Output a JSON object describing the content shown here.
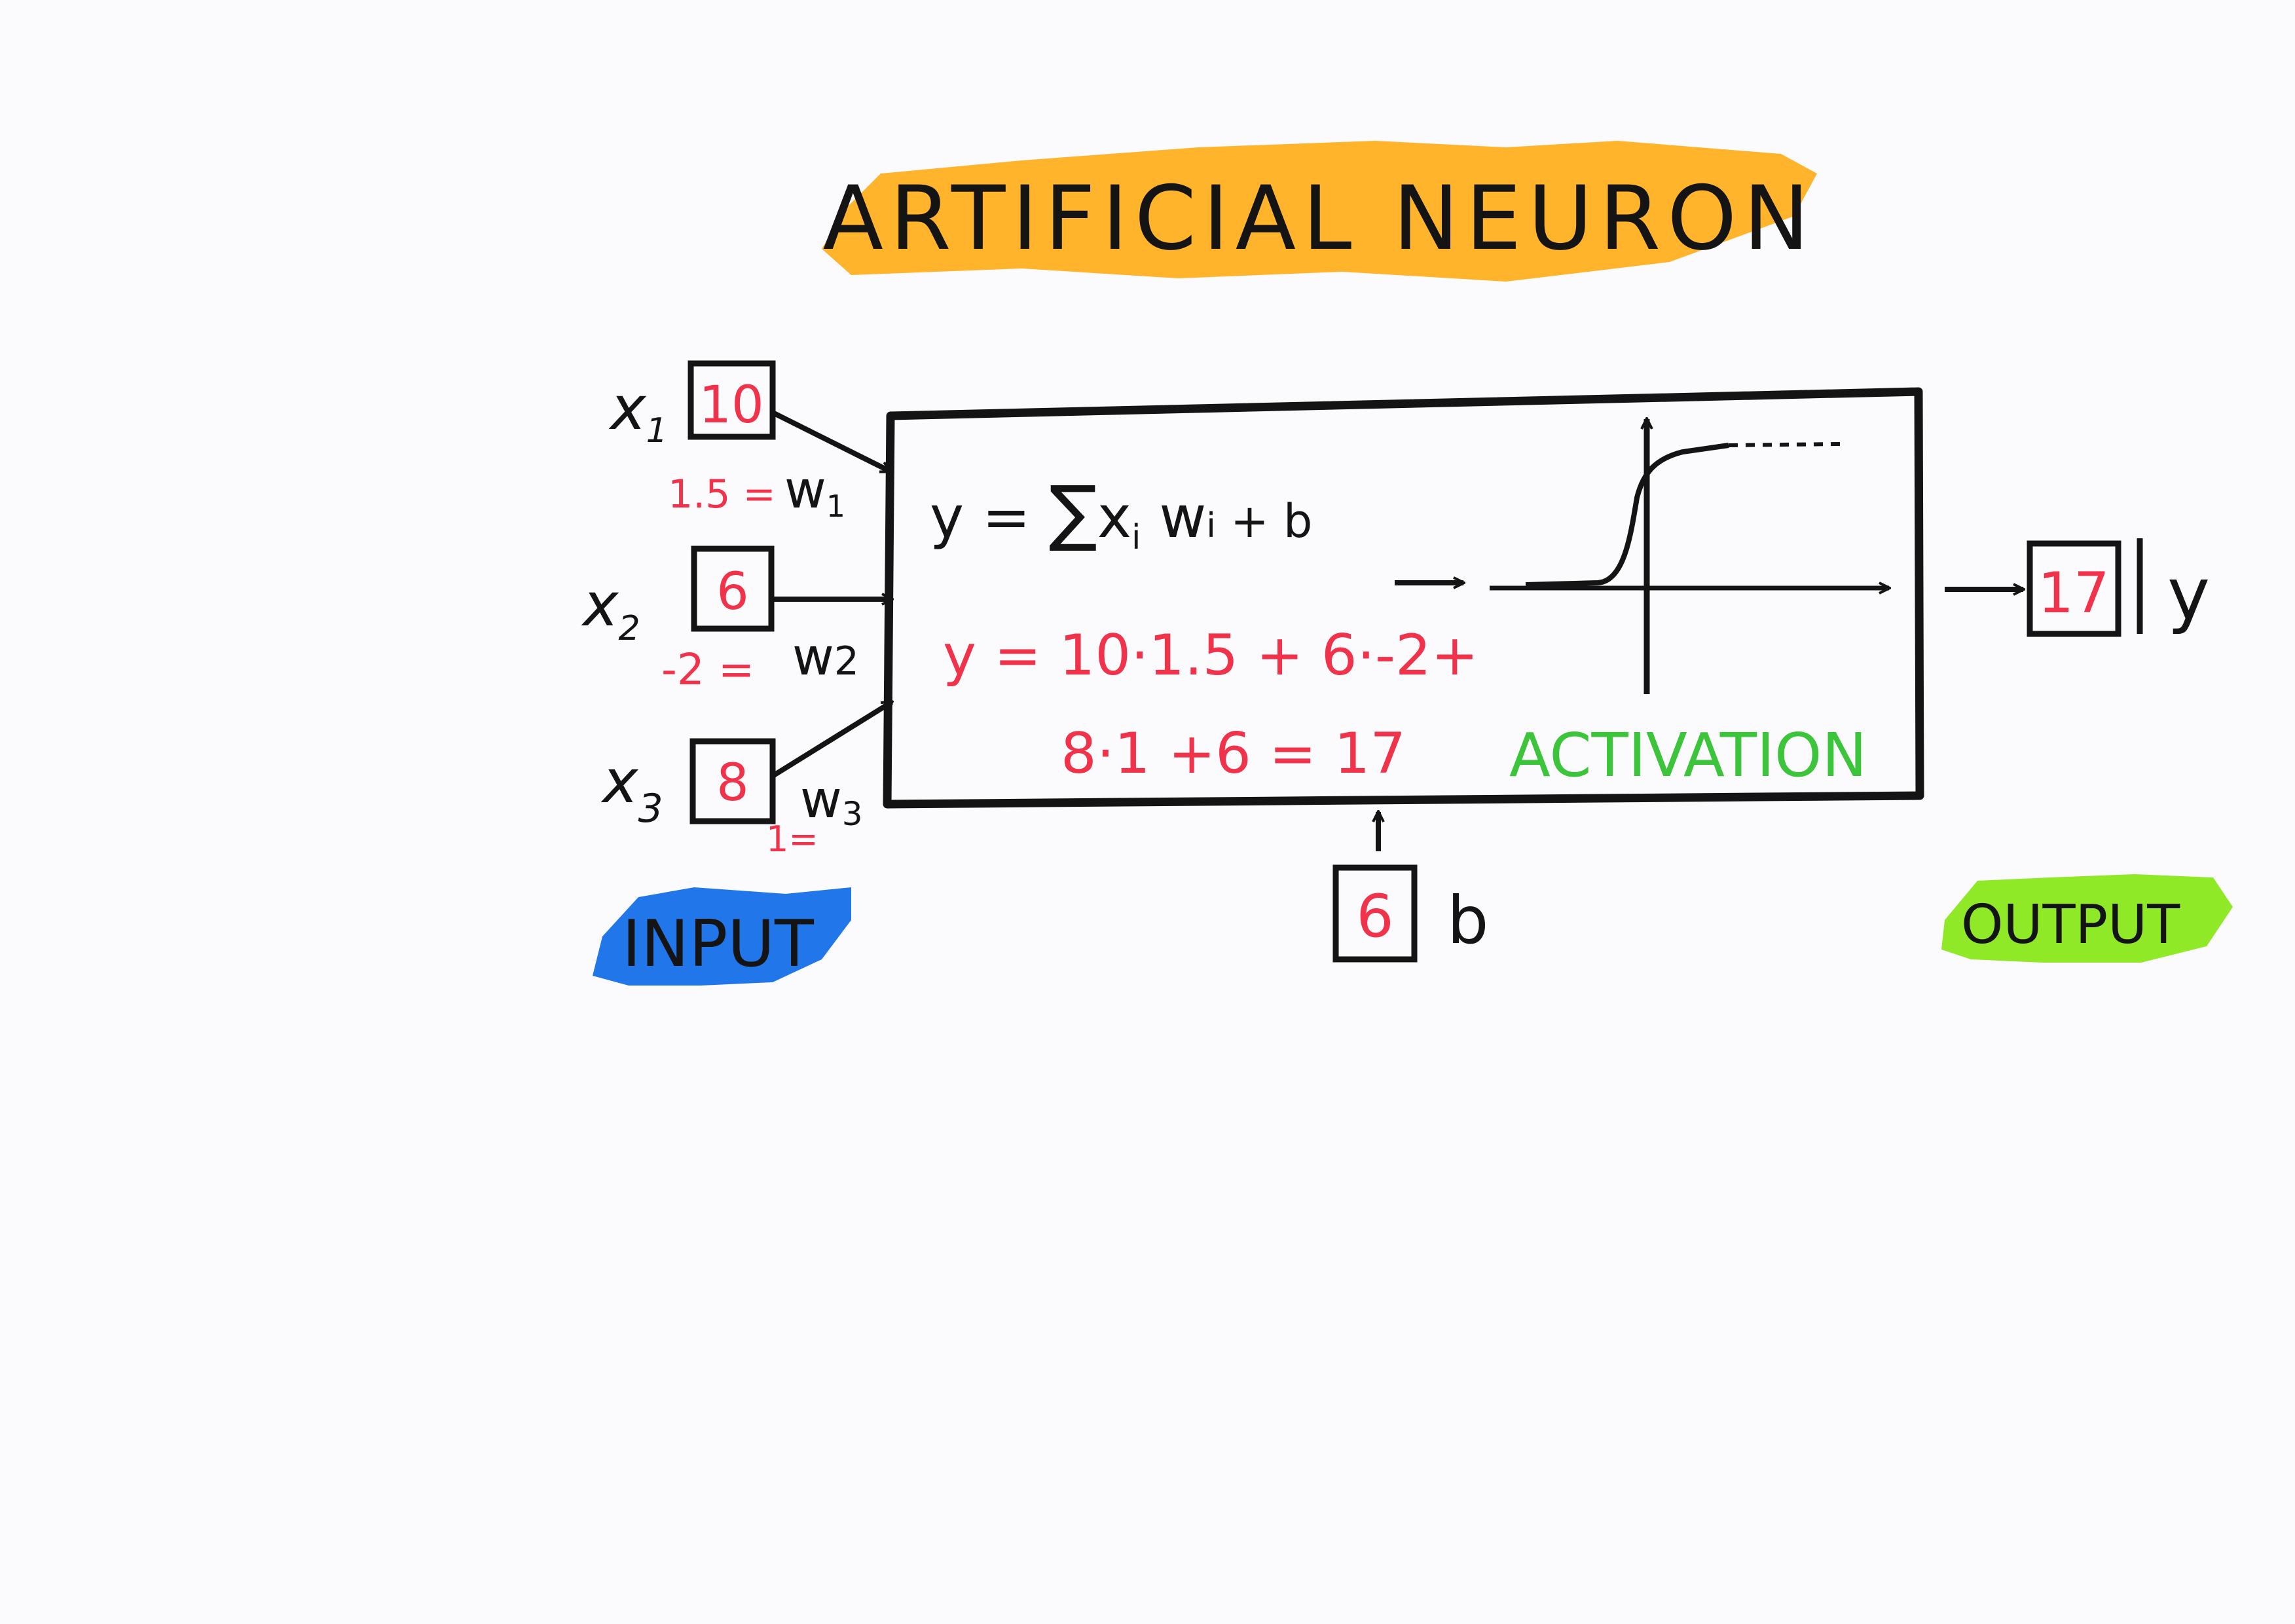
{
  "title": "ARTIFICIAL NEURON",
  "inputs": [
    {
      "label": "x",
      "sub": "1",
      "value": "10",
      "weight_value": "1.5 =",
      "weight": "w",
      "weight_sub": "1"
    },
    {
      "label": "x",
      "sub": "2",
      "value": "6",
      "weight_value": "-2 =",
      "weight": "w",
      "weight_sub": "2"
    },
    {
      "label": "x",
      "sub": "3",
      "value": "8",
      "weight_value": "1=",
      "weight": "w",
      "weight_sub": "3"
    }
  ],
  "formula": {
    "lhs": "y = ",
    "sigma": "∑",
    "x": "x",
    "i1": "i",
    "w": " w",
    "i2": "i",
    "rest": " + b"
  },
  "calc_line1": "y = 10·1.5 + 6·-2+",
  "calc_line2": "8·1 +6 = 17",
  "activation_label": "ACTIVATION",
  "bias": {
    "value": "6",
    "label": "b"
  },
  "output": {
    "value": "17",
    "label": "y"
  },
  "section_labels": {
    "input": "INPUT",
    "output": "OUTPUT"
  },
  "colors": {
    "ink": "#141414",
    "red": "#f0324b",
    "green": "#3cc43a",
    "title_highlight": "#ffae1a",
    "input_highlight": "#1570e8",
    "output_highlight": "#8ae81a"
  }
}
